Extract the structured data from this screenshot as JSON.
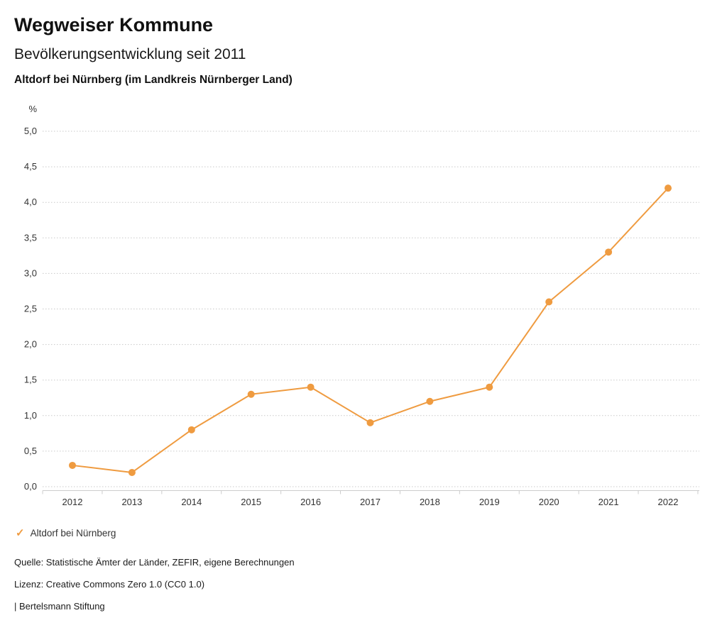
{
  "header": {
    "title": "Wegweiser Kommune",
    "subtitle": "Bevölkerungsentwicklung seit 2011",
    "location": "Altdorf bei Nürnberg (im Landkreis Nürnberger Land)"
  },
  "chart_data": {
    "type": "line",
    "unit": "%",
    "categories": [
      "2012",
      "2013",
      "2014",
      "2015",
      "2016",
      "2017",
      "2018",
      "2019",
      "2020",
      "2021",
      "2022"
    ],
    "series": [
      {
        "name": "Altdorf bei Nürnberg",
        "values": [
          0.3,
          0.2,
          0.8,
          1.3,
          1.4,
          0.9,
          1.2,
          1.4,
          2.6,
          3.3,
          4.2
        ],
        "color": "#ef9b40"
      }
    ],
    "ylim": [
      0,
      5
    ],
    "ytick_step": 0.5,
    "decimal_separator": ",",
    "grid": "dotted-horizontal",
    "legend_position": "bottom-left"
  },
  "legend": {
    "marker_glyph": "✓",
    "items": [
      {
        "label": "Altdorf bei Nürnberg",
        "color": "#ef9b40"
      }
    ]
  },
  "footer": {
    "source": "Quelle: Statistische Ämter der Länder, ZEFIR, eigene Berechnungen",
    "license": "Lizenz: Creative Commons Zero 1.0 (CC0 1.0)",
    "attribution": "| Bertelsmann Stiftung"
  },
  "colors": {
    "accent": "#ef9b40",
    "grid": "#c9c9c9",
    "text": "#333333"
  }
}
